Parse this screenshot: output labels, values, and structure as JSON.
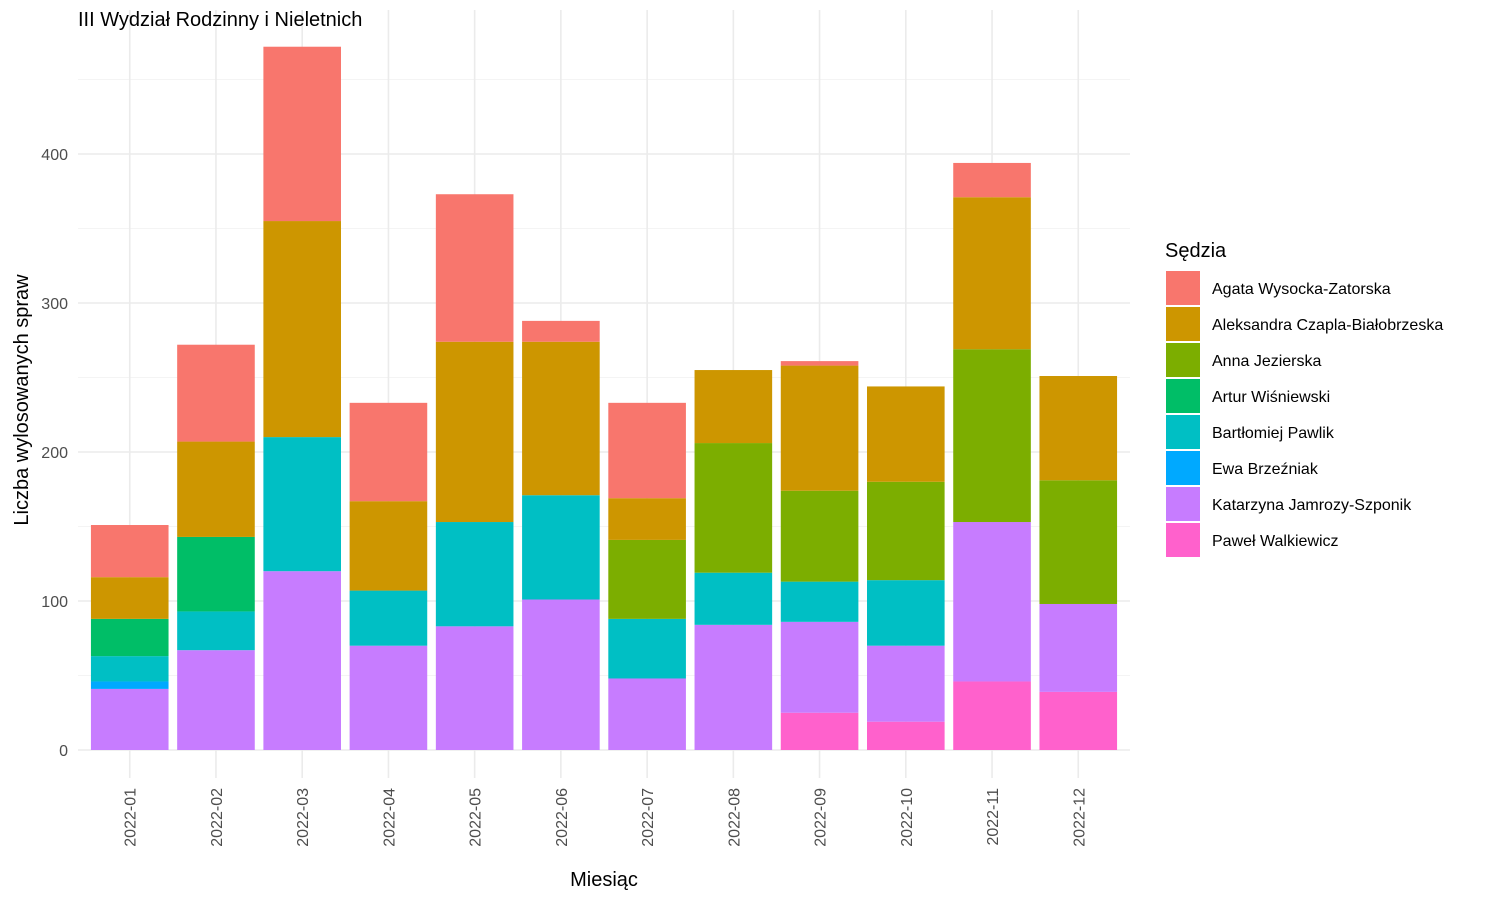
{
  "chart_data": {
    "type": "bar",
    "stacked": true,
    "title": "III Wydział Rodzinny i Nieletnich",
    "xlabel": "Miesiąc",
    "ylabel": "Liczba wylosowanych spraw",
    "ylim": [
      0,
      480
    ],
    "yticks": [
      0,
      100,
      200,
      300,
      400
    ],
    "grid": true,
    "legend_title": "Sędzia",
    "legend_position": "right",
    "categories": [
      "2022-01",
      "2022-02",
      "2022-03",
      "2022-04",
      "2022-05",
      "2022-06",
      "2022-07",
      "2022-08",
      "2022-09",
      "2022-10",
      "2022-11",
      "2022-12"
    ],
    "series": [
      {
        "name": "Agata Wysocka-Zatorska",
        "color": "#F8766D",
        "values": [
          35,
          65,
          117,
          66,
          99,
          14,
          64,
          0,
          3,
          0,
          23,
          0
        ]
      },
      {
        "name": "Aleksandra Czapla-Białobrzeska",
        "color": "#CD9600",
        "values": [
          28,
          64,
          145,
          60,
          121,
          103,
          28,
          49,
          84,
          64,
          102,
          70
        ]
      },
      {
        "name": "Anna Jezierska",
        "color": "#7CAE00",
        "values": [
          0,
          0,
          0,
          0,
          0,
          0,
          53,
          87,
          61,
          66,
          116,
          83
        ]
      },
      {
        "name": "Artur Wiśniewski",
        "color": "#00BE67",
        "values": [
          25,
          50,
          0,
          0,
          0,
          0,
          0,
          0,
          0,
          0,
          0,
          0
        ]
      },
      {
        "name": "Bartłomiej Pawlik",
        "color": "#00BFC4",
        "values": [
          17,
          26,
          90,
          37,
          70,
          70,
          40,
          35,
          27,
          44,
          0,
          0
        ]
      },
      {
        "name": "Ewa Brzeźniak",
        "color": "#00A9FF",
        "values": [
          5,
          0,
          0,
          0,
          0,
          0,
          0,
          0,
          0,
          0,
          0,
          0
        ]
      },
      {
        "name": "Katarzyna Jamrozy-Szponik",
        "color": "#C77CFF",
        "values": [
          41,
          67,
          120,
          70,
          83,
          101,
          48,
          84,
          61,
          51,
          107,
          59
        ]
      },
      {
        "name": "Paweł Walkiewicz",
        "color": "#FF61CC",
        "values": [
          0,
          0,
          0,
          0,
          0,
          0,
          0,
          0,
          25,
          19,
          46,
          39
        ]
      }
    ]
  }
}
